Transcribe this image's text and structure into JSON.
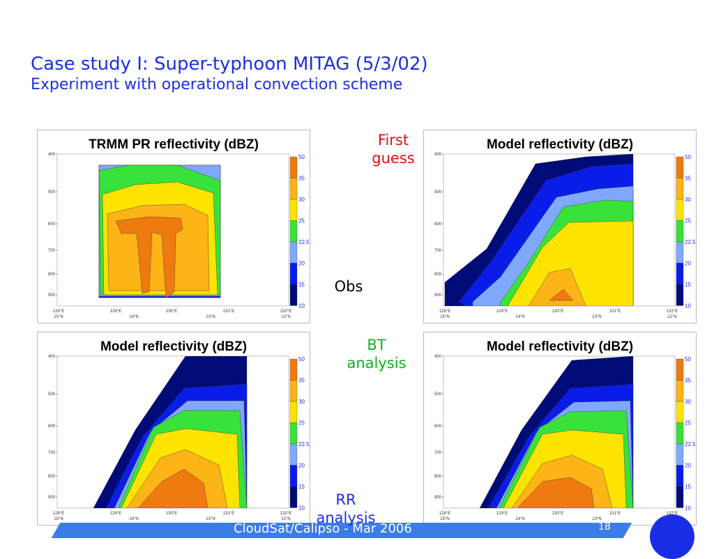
{
  "slide": {
    "title_line1": "Case study I: Super-typhoon MITAG (5/3/02)",
    "title_line2": "Experiment with operational convection scheme"
  },
  "labels": {
    "first_guess": "First\nguess",
    "obs": "Obs",
    "bt_analysis": "BT\nanalysis",
    "rr_analysis": "RR\nanalysis"
  },
  "panels": [
    {
      "id": "obs",
      "title": "TRMM PR reflectivity (dBZ)"
    },
    {
      "id": "first-guess",
      "title": "Model reflectivity (dBZ)"
    },
    {
      "id": "bt-analysis",
      "title": "Model reflectivity (dBZ)"
    },
    {
      "id": "rr-analysis",
      "title": "Model reflectivity (dBZ)"
    }
  ],
  "axes": {
    "pressure_ticks": [
      "400",
      "500",
      "600",
      "700",
      "800",
      "900"
    ],
    "lon_ticks": [
      "128°E",
      "129°E",
      "130°E",
      "131°E",
      "132°E"
    ],
    "lat_ticks": [
      "15°N",
      "14°N",
      "13°N",
      "12°N"
    ]
  },
  "colorbar": {
    "labels": [
      "50",
      "35",
      "30",
      "25",
      "22.5",
      "20",
      "15",
      "10"
    ],
    "colors": [
      "#ee7a10",
      "#fcb416",
      "#fce300",
      "#38e23a",
      "#7fa8ff",
      "#0a1de8",
      "#000b78"
    ]
  },
  "footer": {
    "text": "CloudSat/Calipso - Mar 2006",
    "page": "18"
  },
  "colors": {
    "title_blue": "#1a2ee6",
    "first_guess_red": "#e01010",
    "bt_green": "#0bb414",
    "rr_blue": "#1a2ee6",
    "footer_bar": "#3c7ce8"
  }
}
